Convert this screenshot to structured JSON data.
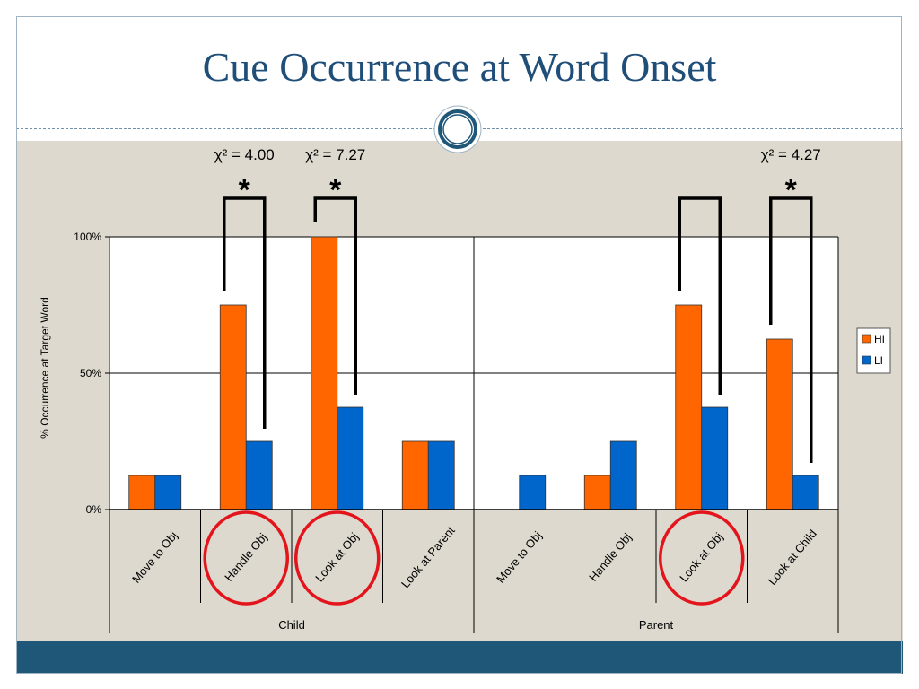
{
  "slide": {
    "title": "Cue Occurrence at Word Onset"
  },
  "colors": {
    "HI": "#ff6600",
    "LI": "#0066cc",
    "title": "#1f4e79",
    "highlight_circle": "#e3141b",
    "footer": "#1f5779",
    "background": "#ddd9ce"
  },
  "chart_data": {
    "type": "bar",
    "title": "",
    "xlabel": "",
    "ylabel": "% Occurrence at Target Word",
    "ylim": [
      0,
      100
    ],
    "yticks": [
      "0%",
      "50%",
      "100%"
    ],
    "grid": true,
    "legend_position": "right",
    "groups": [
      {
        "name": "Child",
        "categories": [
          "Move to Obj",
          "Handle Obj",
          "Look at Obj",
          "Look at Parent"
        ]
      },
      {
        "name": "Parent",
        "categories": [
          "Move to Obj",
          "Handle Obj",
          "Look at Obj",
          "Look at Child"
        ]
      }
    ],
    "categories": [
      "Move to Obj",
      "Handle Obj",
      "Look at Obj",
      "Look at Parent",
      "Move to Obj",
      "Handle Obj",
      "Look at Obj",
      "Look at Child"
    ],
    "series": [
      {
        "name": "HI",
        "values": [
          12.5,
          75,
          100,
          25,
          0,
          12.5,
          75,
          62.5
        ]
      },
      {
        "name": "LI",
        "values": [
          12.5,
          25,
          37.5,
          25,
          12.5,
          25,
          37.5,
          12.5
        ]
      }
    ],
    "annotations": [
      {
        "category_index": 1,
        "stat": "χ² = 4.00",
        "significant": true,
        "circled": true
      },
      {
        "category_index": 2,
        "stat": "χ² = 7.27",
        "significant": true,
        "circled": true
      },
      {
        "category_index": 6,
        "stat": "",
        "significant": false,
        "circled": true
      },
      {
        "category_index": 7,
        "stat": "χ² = 4.27",
        "significant": true,
        "circled": false
      }
    ],
    "significance_marker": "*"
  }
}
